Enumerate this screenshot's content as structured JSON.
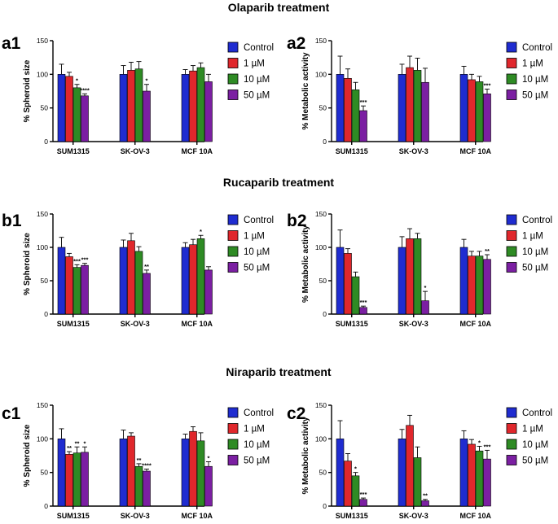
{
  "legend": [
    "Control",
    "1 µM",
    "10 µM",
    "50 µM"
  ],
  "colors": [
    "#1f2cd0",
    "#e0272c",
    "#2e8b24",
    "#7b1fa2"
  ],
  "sections": [
    {
      "title": "Olaparib treatment"
    },
    {
      "title": "Rucaparib treatment"
    },
    {
      "title": "Niraparib treatment"
    }
  ],
  "chart_data": [
    {
      "panel": "a1",
      "type": "bar",
      "title": "Olaparib treatment",
      "ylabel": "% Spheroid size",
      "xlabel": "",
      "ylim": [
        0,
        150
      ],
      "yticks": [
        0,
        50,
        100,
        150
      ],
      "categories": [
        "SUM1315",
        "SK-OV-3",
        "MCF 10A"
      ],
      "series": [
        {
          "name": "Control",
          "values": [
            100,
            100,
            100
          ],
          "errors": [
            15,
            13,
            7
          ],
          "sig": [
            "",
            "",
            ""
          ]
        },
        {
          "name": "1 µM",
          "values": [
            97,
            106,
            105
          ],
          "errors": [
            6,
            12,
            8
          ],
          "sig": [
            "",
            "",
            ""
          ]
        },
        {
          "name": "10 µM",
          "values": [
            80,
            108,
            110
          ],
          "errors": [
            5,
            11,
            7
          ],
          "sig": [
            "*",
            "",
            ""
          ]
        },
        {
          "name": "50 µM",
          "values": [
            68,
            75,
            89
          ],
          "errors": [
            3,
            10,
            11
          ],
          "sig": [
            "****",
            "*",
            ""
          ]
        }
      ]
    },
    {
      "panel": "a2",
      "type": "bar",
      "title": "Olaparib treatment",
      "ylabel": "% Metabolic activity",
      "xlabel": "",
      "ylim": [
        0,
        150
      ],
      "yticks": [
        0,
        50,
        100,
        150
      ],
      "categories": [
        "SUM1315",
        "SK-OV-3",
        "MCF 10A"
      ],
      "series": [
        {
          "name": "Control",
          "values": [
            100,
            100,
            100
          ],
          "errors": [
            27,
            15,
            12
          ],
          "sig": [
            "",
            "",
            ""
          ]
        },
        {
          "name": "1 µM",
          "values": [
            94,
            110,
            92
          ],
          "errors": [
            14,
            17,
            8
          ],
          "sig": [
            "",
            "",
            ""
          ]
        },
        {
          "name": "10 µM",
          "values": [
            77,
            106,
            89
          ],
          "errors": [
            11,
            18,
            8
          ],
          "sig": [
            "",
            "",
            ""
          ]
        },
        {
          "name": "50 µM",
          "values": [
            46,
            88,
            71
          ],
          "errors": [
            7,
            21,
            7
          ],
          "sig": [
            "***",
            "",
            "***"
          ]
        }
      ]
    },
    {
      "panel": "b1",
      "type": "bar",
      "title": "Rucaparib treatment",
      "ylabel": "% Spheroid size",
      "xlabel": "",
      "ylim": [
        0,
        150
      ],
      "yticks": [
        0,
        50,
        100,
        150
      ],
      "categories": [
        "SUM1315",
        "SK-OV-3",
        "MCF 10A"
      ],
      "series": [
        {
          "name": "Control",
          "values": [
            100,
            100,
            100
          ],
          "errors": [
            15,
            11,
            7
          ],
          "sig": [
            "",
            "",
            ""
          ]
        },
        {
          "name": "1 µM",
          "values": [
            86,
            110,
            104
          ],
          "errors": [
            5,
            11,
            8
          ],
          "sig": [
            "",
            "",
            ""
          ]
        },
        {
          "name": "10 µM",
          "values": [
            70,
            94,
            113
          ],
          "errors": [
            4,
            7,
            5
          ],
          "sig": [
            "***",
            "",
            "*"
          ]
        },
        {
          "name": "50 µM",
          "values": [
            73,
            61,
            66
          ],
          "errors": [
            3,
            5,
            5
          ],
          "sig": [
            "***",
            "**",
            ""
          ]
        }
      ]
    },
    {
      "panel": "b2",
      "type": "bar",
      "title": "Rucaparib treatment",
      "ylabel": "% Metabolic activity",
      "xlabel": "",
      "ylim": [
        0,
        150
      ],
      "yticks": [
        0,
        50,
        100,
        150
      ],
      "categories": [
        "SUM1315",
        "SK-OV-3",
        "MCF 10A"
      ],
      "series": [
        {
          "name": "Control",
          "values": [
            100,
            100,
            100
          ],
          "errors": [
            26,
            16,
            12
          ],
          "sig": [
            "",
            "",
            ""
          ]
        },
        {
          "name": "1 µM",
          "values": [
            91,
            113,
            87
          ],
          "errors": [
            7,
            15,
            7
          ],
          "sig": [
            "",
            "",
            ""
          ]
        },
        {
          "name": "10 µM",
          "values": [
            56,
            113,
            87
          ],
          "errors": [
            7,
            8,
            7
          ],
          "sig": [
            "",
            "",
            ""
          ]
        },
        {
          "name": "50 µM",
          "values": [
            10,
            20,
            82
          ],
          "errors": [
            2,
            14,
            7
          ],
          "sig": [
            "***",
            "*",
            "**"
          ]
        }
      ]
    },
    {
      "panel": "c1",
      "type": "bar",
      "title": "Niraparib treatment",
      "ylabel": "% Spheroid size",
      "xlabel": "",
      "ylim": [
        0,
        150
      ],
      "yticks": [
        0,
        50,
        100,
        150
      ],
      "categories": [
        "SUM1315",
        "SK-OV-3",
        "MCF 10A"
      ],
      "series": [
        {
          "name": "Control",
          "values": [
            100,
            100,
            100
          ],
          "errors": [
            15,
            13,
            7
          ],
          "sig": [
            "",
            "",
            ""
          ]
        },
        {
          "name": "1 µM",
          "values": [
            77,
            104,
            111
          ],
          "errors": [
            4,
            5,
            7
          ],
          "sig": [
            "**",
            "",
            ""
          ]
        },
        {
          "name": "10 µM",
          "values": [
            79,
            59,
            97
          ],
          "errors": [
            9,
            4,
            12
          ],
          "sig": [
            "**",
            "**",
            ""
          ]
        },
        {
          "name": "50 µM",
          "values": [
            80,
            52,
            59
          ],
          "errors": [
            8,
            3,
            7
          ],
          "sig": [
            "*",
            "****",
            "*"
          ]
        }
      ]
    },
    {
      "panel": "c2",
      "type": "bar",
      "title": "Niraparib treatment",
      "ylabel": "% Metabolic activity",
      "xlabel": "",
      "ylim": [
        0,
        150
      ],
      "yticks": [
        0,
        50,
        100,
        150
      ],
      "categories": [
        "SUM1315",
        "SK-OV-3",
        "MCF 10A"
      ],
      "series": [
        {
          "name": "Control",
          "values": [
            100,
            100,
            100
          ],
          "errors": [
            27,
            14,
            12
          ],
          "sig": [
            "",
            "",
            ""
          ]
        },
        {
          "name": "1 µM",
          "values": [
            67,
            120,
            92
          ],
          "errors": [
            11,
            15,
            7
          ],
          "sig": [
            "",
            "",
            ""
          ]
        },
        {
          "name": "10 µM",
          "values": [
            45,
            72,
            82
          ],
          "errors": [
            5,
            16,
            7
          ],
          "sig": [
            "*",
            "",
            "*"
          ]
        },
        {
          "name": "50 µM",
          "values": [
            10,
            8,
            70
          ],
          "errors": [
            2,
            2,
            13
          ],
          "sig": [
            "***",
            "**",
            "***"
          ]
        }
      ]
    }
  ]
}
